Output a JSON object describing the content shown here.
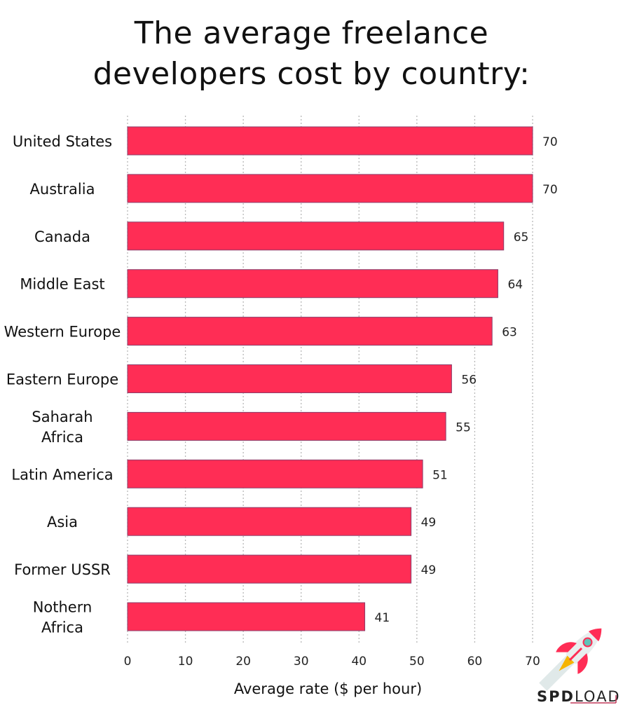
{
  "chart_data": {
    "type": "bar",
    "orientation": "horizontal",
    "title": "The average freelance developers cost by country:",
    "title_lines": [
      "The average freelance",
      "developers cost by country:"
    ],
    "xlabel": "Average rate ($ per hour)",
    "ylabel": "",
    "xlim": [
      0,
      70
    ],
    "xticks": [
      0,
      10,
      20,
      30,
      40,
      50,
      60,
      70
    ],
    "grid": "vertical dotted",
    "categories": [
      [
        "United States"
      ],
      [
        "Australia"
      ],
      [
        "Canada"
      ],
      [
        "Middle East"
      ],
      [
        "Western Europe"
      ],
      [
        "Eastern Europe"
      ],
      [
        "Saharah",
        "Africa"
      ],
      [
        "Latin America"
      ],
      [
        "Asia"
      ],
      [
        "Former USSR"
      ],
      [
        "Nothern",
        "Africa"
      ]
    ],
    "values": [
      70,
      70,
      65,
      64,
      63,
      56,
      55,
      51,
      49,
      49,
      41
    ],
    "bar_color": "#FF2D55",
    "bar_border_color": "#8A3D6A"
  },
  "logo": {
    "text_bold": "SPD",
    "text_light": "LOAD",
    "icon": "rocket-icon"
  }
}
